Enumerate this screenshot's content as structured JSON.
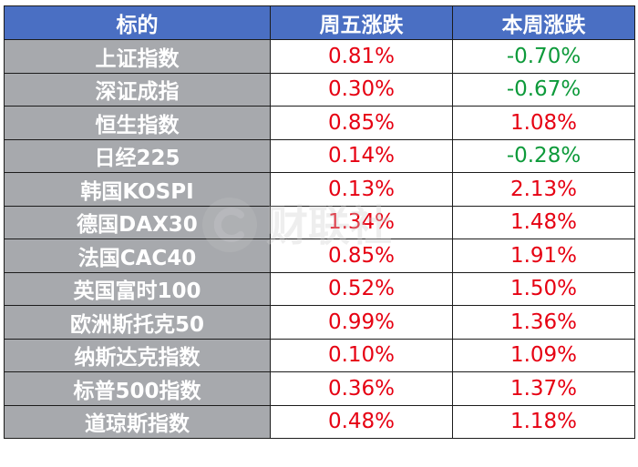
{
  "chart_data": {
    "type": "table",
    "columns": [
      "标的",
      "周五涨跌",
      "本周涨跌"
    ],
    "rows": [
      {
        "name": "上证指数",
        "fri": "0.81%",
        "week": "-0.70%"
      },
      {
        "name": "深证成指",
        "fri": "0.30%",
        "week": "-0.67%"
      },
      {
        "name": "恒生指数",
        "fri": "0.85%",
        "week": "1.08%"
      },
      {
        "name": "日经225",
        "fri": "0.14%",
        "week": "-0.28%"
      },
      {
        "name": "韩国KOSPI",
        "fri": "0.13%",
        "week": "2.13%"
      },
      {
        "name": "德国DAX30",
        "fri": "1.34%",
        "week": "1.48%"
      },
      {
        "name": "法国CAC40",
        "fri": "0.85%",
        "week": "1.91%"
      },
      {
        "name": "英国富时100",
        "fri": "0.52%",
        "week": "1.50%"
      },
      {
        "name": "欧洲斯托克50",
        "fri": "0.99%",
        "week": "1.36%"
      },
      {
        "name": "纳斯达克指数",
        "fri": "0.10%",
        "week": "1.09%"
      },
      {
        "name": "标普500指数",
        "fri": "0.36%",
        "week": "1.37%"
      },
      {
        "name": "道琼斯指数",
        "fri": "0.48%",
        "week": "1.18%"
      }
    ]
  },
  "colors": {
    "header_bg": "#4a6fc3",
    "name_bg": "#a7a9ad",
    "up": "#e60012",
    "down": "#0d9a3a"
  },
  "watermark": {
    "text": "财联社",
    "icon": "cls-logo-icon"
  }
}
